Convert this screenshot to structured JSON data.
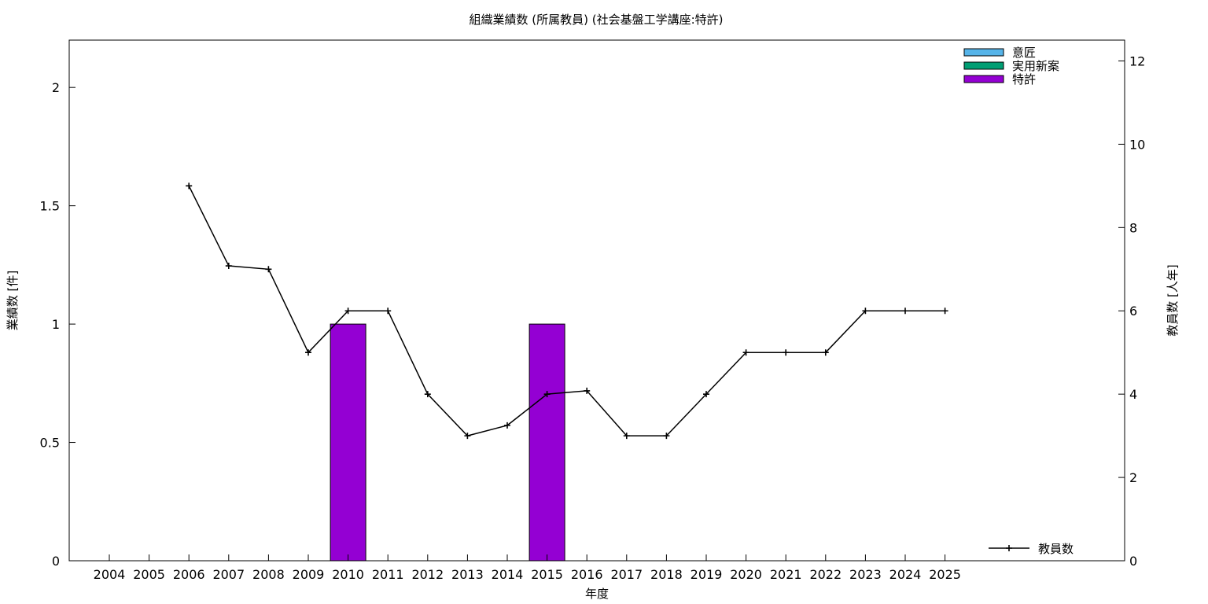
{
  "chart_data": {
    "type": "bar",
    "title": "組織業績数 (所属教員) (社会基盤工学講座:特許)",
    "xlabel": "年度",
    "ylabel": "業績数 [件]",
    "y2label": "教員数 [人年]",
    "categories": [
      "2004",
      "2005",
      "2006",
      "2007",
      "2008",
      "2009",
      "2010",
      "2011",
      "2012",
      "2013",
      "2014",
      "2015",
      "2016",
      "2017",
      "2018",
      "2019",
      "2020",
      "2021",
      "2022",
      "2023",
      "2024",
      "2025"
    ],
    "ylim": [
      0,
      2.2
    ],
    "yticks": [
      "0",
      "0.5",
      "1",
      "1.5",
      "2"
    ],
    "ytick_values": [
      0,
      0.5,
      1,
      1.5,
      2
    ],
    "y2lim": [
      0,
      12.5
    ],
    "y2ticks": [
      "0",
      "2",
      "4",
      "6",
      "8",
      "10",
      "12"
    ],
    "y2tick_values": [
      0,
      2,
      4,
      6,
      8,
      10,
      12
    ],
    "grid": false,
    "legend_position": "top-right",
    "series": [
      {
        "name": "意匠",
        "color": "#56b4e9",
        "values": [
          0,
          0,
          0,
          0,
          0,
          0,
          0,
          0,
          0,
          0,
          0,
          0,
          0,
          0,
          0,
          0,
          0,
          0,
          0,
          0,
          0,
          0
        ]
      },
      {
        "name": "実用新案",
        "color": "#009e73",
        "values": [
          0,
          0,
          0,
          0,
          0,
          0,
          0,
          0,
          0,
          0,
          0,
          0,
          0,
          0,
          0,
          0,
          0,
          0,
          0,
          0,
          0,
          0
        ]
      },
      {
        "name": "特許",
        "color": "#9400d3",
        "values": [
          0,
          0,
          0,
          0,
          0,
          0,
          1,
          0,
          0,
          0,
          0,
          1,
          0,
          0,
          0,
          0,
          0,
          0,
          0,
          0,
          0,
          0
        ]
      }
    ],
    "line_series": {
      "name": "教員数",
      "axis": "y2",
      "color": "#000000",
      "values": [
        null,
        null,
        9,
        7.08,
        7,
        5,
        6,
        6,
        4,
        3,
        3.25,
        4,
        4.08,
        3,
        3,
        4,
        5,
        5,
        5,
        6,
        6,
        6
      ]
    }
  }
}
